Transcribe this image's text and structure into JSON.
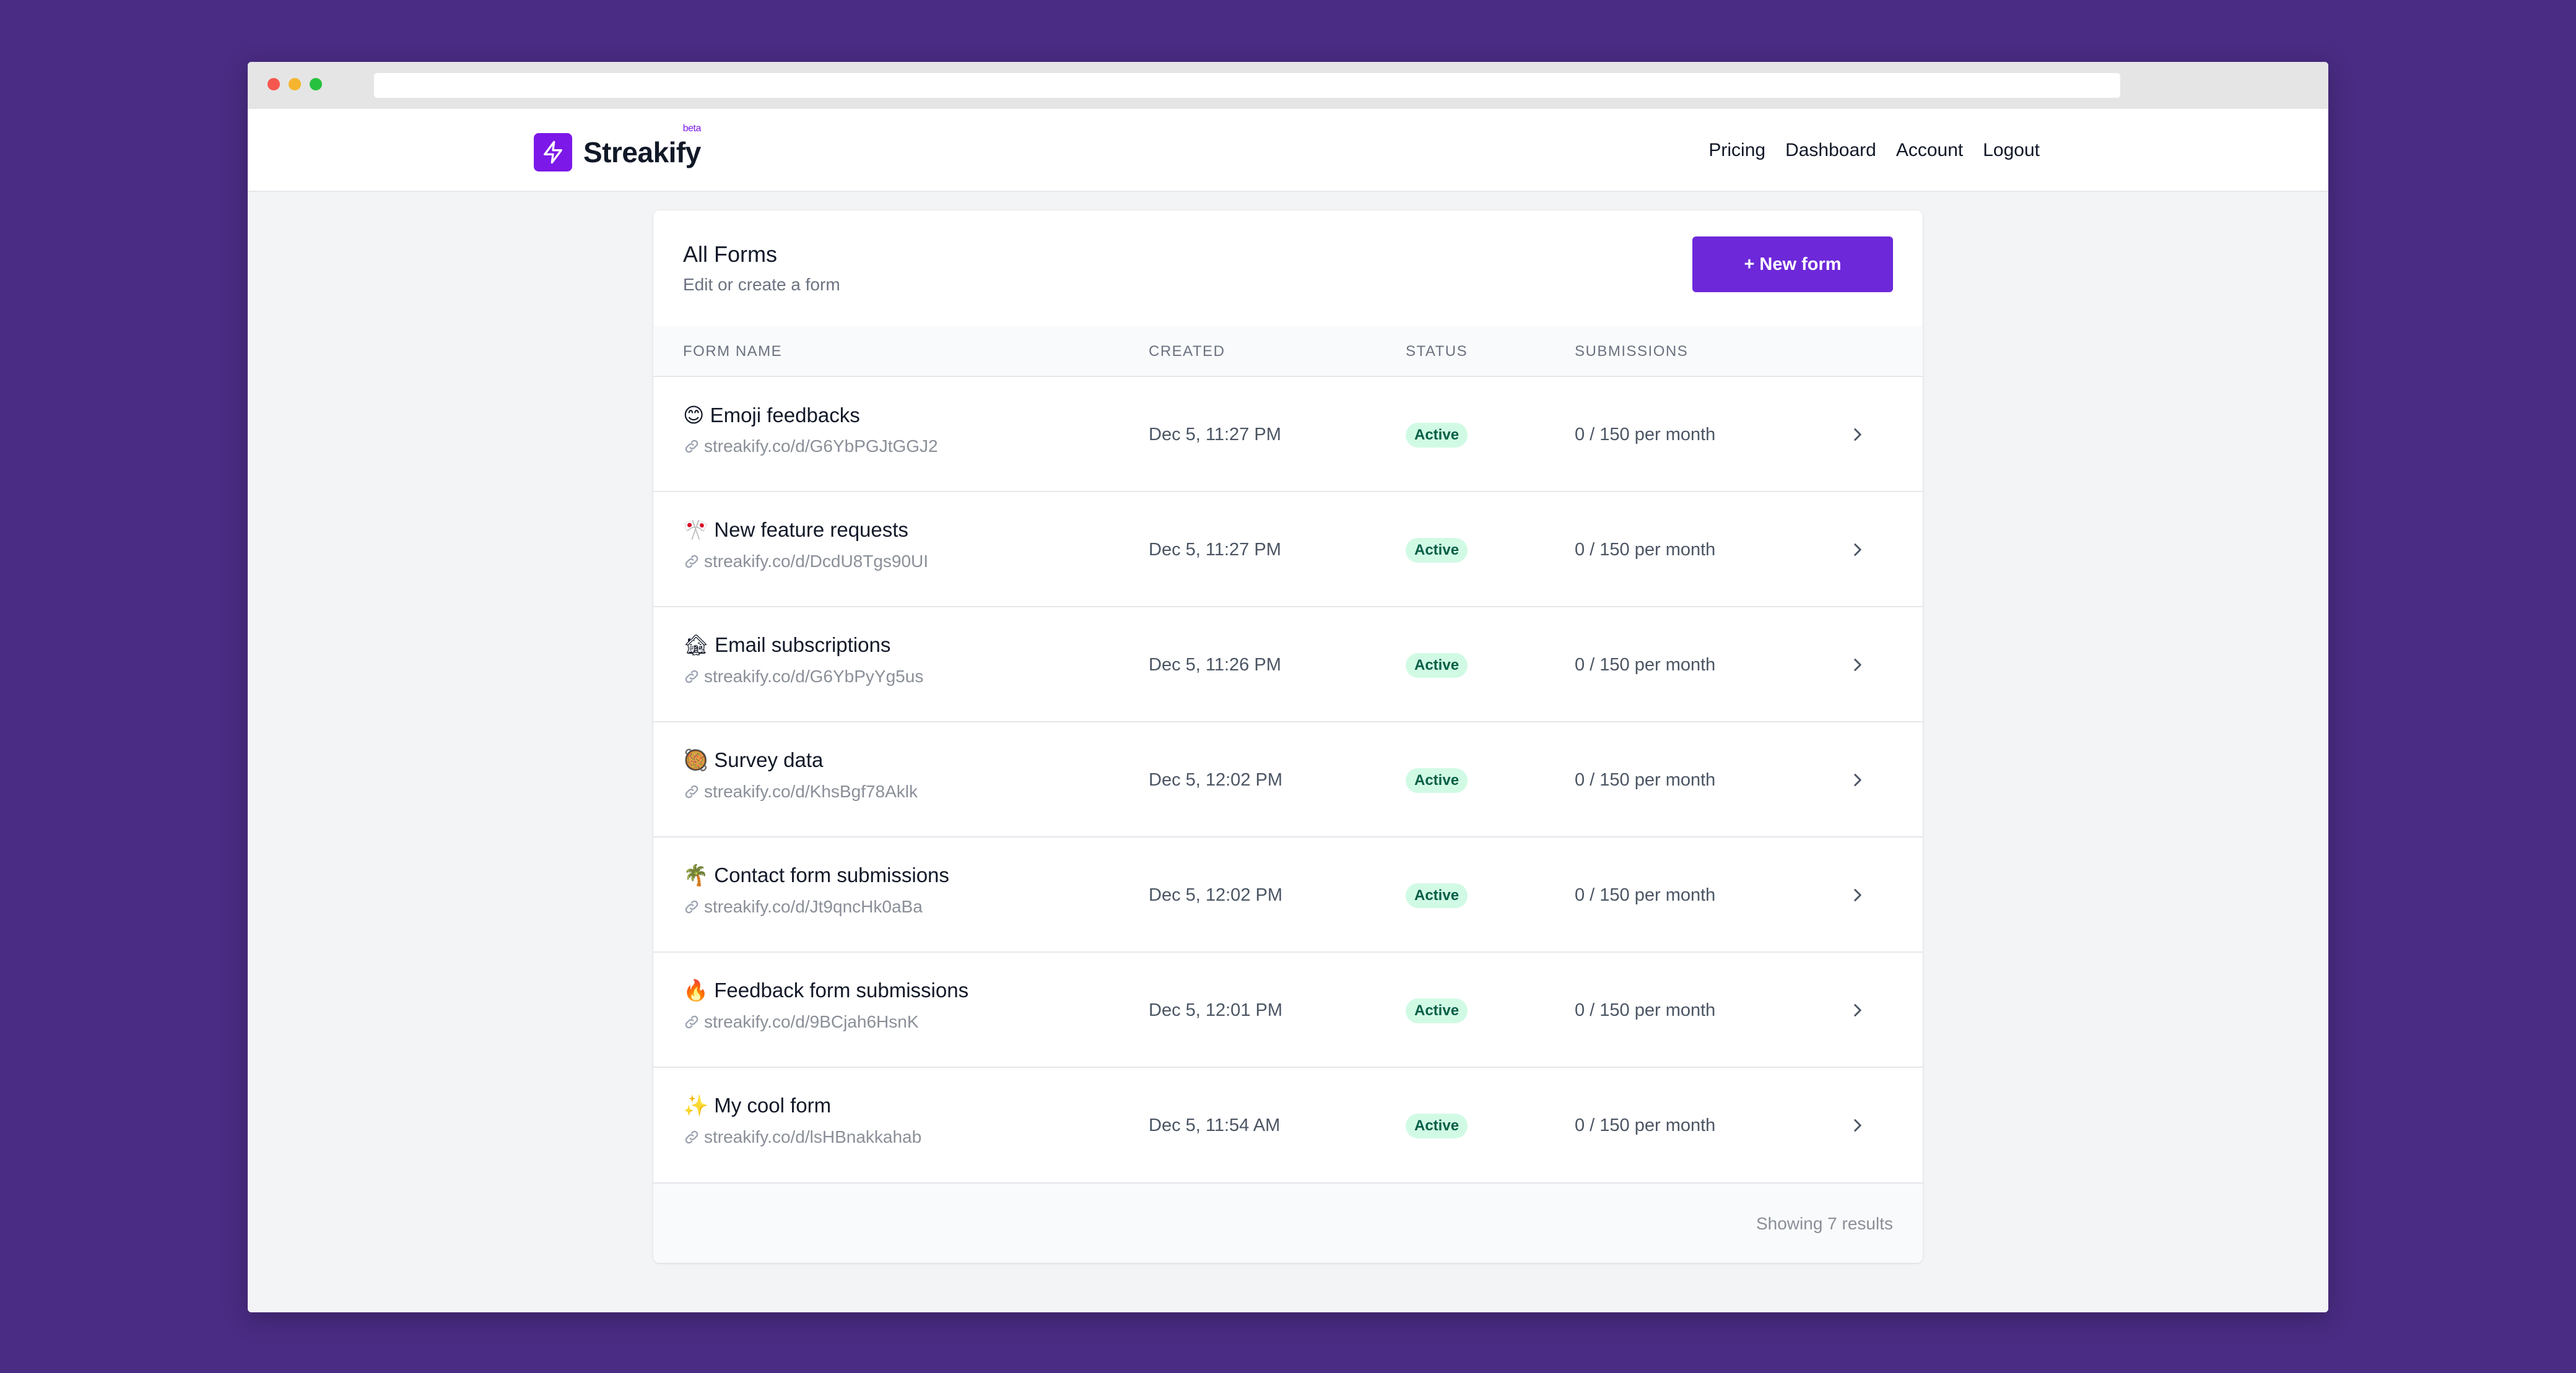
{
  "brand": {
    "name": "Streakify",
    "badge": "beta",
    "accent": "#7c18e8"
  },
  "nav": [
    {
      "label": "Pricing"
    },
    {
      "label": "Dashboard"
    },
    {
      "label": "Account"
    },
    {
      "label": "Logout"
    }
  ],
  "page": {
    "title": "All Forms",
    "subtitle": "Edit or create a form",
    "new_button_label": "+ New form"
  },
  "table": {
    "headers": {
      "name": "FORM NAME",
      "created": "CREATED",
      "status": "STATUS",
      "submissions": "SUBMISSIONS"
    },
    "rows": [
      {
        "emoji": "😊",
        "name": "Emoji feedbacks",
        "url": "streakify.co/d/G6YbPGJtGGJ2",
        "created": "Dec 5, 11:27 PM",
        "status": "Active",
        "submissions": "0 / 150 per month"
      },
      {
        "emoji": "🎌",
        "name": "New feature requests",
        "url": "streakify.co/d/DcdU8Tgs90UI",
        "created": "Dec 5, 11:27 PM",
        "status": "Active",
        "submissions": "0 / 150 per month"
      },
      {
        "emoji": "🏚",
        "name": "Email subscriptions",
        "url": "streakify.co/d/G6YbPyYg5us",
        "created": "Dec 5, 11:26 PM",
        "status": "Active",
        "submissions": "0 / 150 per month"
      },
      {
        "emoji": "🥘",
        "name": "Survey data",
        "url": "streakify.co/d/KhsBgf78Aklk",
        "created": "Dec 5, 12:02 PM",
        "status": "Active",
        "submissions": "0 / 150 per month"
      },
      {
        "emoji": "🌴",
        "name": "Contact form submissions",
        "url": "streakify.co/d/Jt9qncHk0aBa",
        "created": "Dec 5, 12:02 PM",
        "status": "Active",
        "submissions": "0 / 150 per month"
      },
      {
        "emoji": "🔥",
        "name": "Feedback form submissions",
        "url": "streakify.co/d/9BCjah6HsnK",
        "created": "Dec 5, 12:01 PM",
        "status": "Active",
        "submissions": "0 / 150 per month"
      },
      {
        "emoji": "✨",
        "name": "My cool form",
        "url": "streakify.co/d/lsHBnakkahab",
        "created": "Dec 5, 11:54 AM",
        "status": "Active",
        "submissions": "0 / 150 per month"
      }
    ]
  },
  "footer": {
    "results_text": "Showing 7 results"
  }
}
